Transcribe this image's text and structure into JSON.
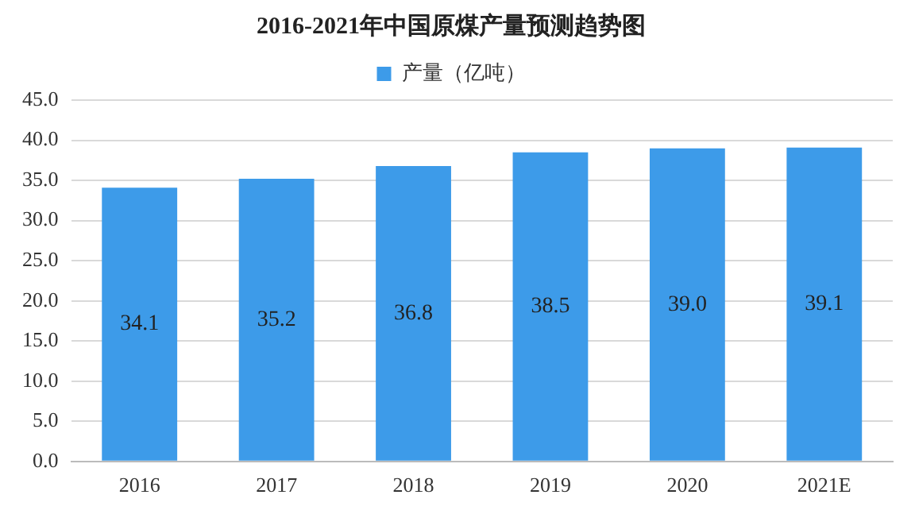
{
  "chart_data": {
    "type": "bar",
    "title": "2016-2021年中国原煤产量预测趋势图",
    "categories": [
      "2016",
      "2017",
      "2018",
      "2019",
      "2020",
      "2021E"
    ],
    "series": [
      {
        "name": "产量（亿吨）",
        "color": "#3d9be9",
        "values": [
          34.1,
          35.2,
          36.8,
          38.5,
          39.0,
          39.1
        ],
        "value_labels": [
          "34.1",
          "35.2",
          "36.8",
          "38.5",
          "39.0",
          "39.1"
        ]
      }
    ],
    "ylim": [
      0,
      45
    ],
    "yticks": [
      {
        "value": 0,
        "label": "0.0"
      },
      {
        "value": 5,
        "label": "5.0"
      },
      {
        "value": 10,
        "label": "10.0"
      },
      {
        "value": 15,
        "label": "15.0"
      },
      {
        "value": 20,
        "label": "20.0"
      },
      {
        "value": 25,
        "label": "25.0"
      },
      {
        "value": 30,
        "label": "30.0"
      },
      {
        "value": 35,
        "label": "35.0"
      },
      {
        "value": 40,
        "label": "40.0"
      },
      {
        "value": 45,
        "label": "45.0"
      }
    ],
    "grid": "y",
    "legend": "top"
  }
}
